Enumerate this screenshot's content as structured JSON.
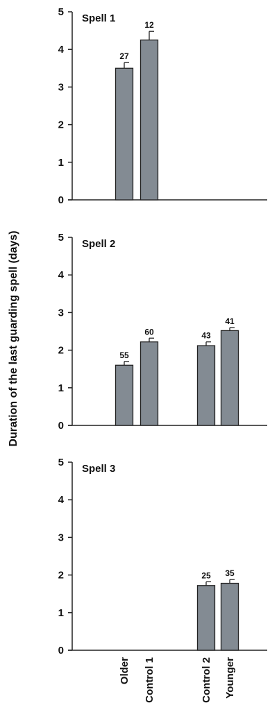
{
  "figure": {
    "ylabel": "Duration of the last guarding spell (days)",
    "categories": [
      "Older",
      "Control 1",
      "Control 2",
      "Younger"
    ]
  },
  "colors": {
    "bar_fill": "#838b93",
    "bar_stroke": "#222222",
    "axis": "#222222"
  },
  "chart_data": [
    {
      "type": "bar",
      "title": "Spell 1",
      "categories": [
        "Older",
        "Control 1",
        "Control 2",
        "Younger"
      ],
      "values": [
        3.5,
        4.25,
        null,
        null
      ],
      "errors": [
        0.15,
        0.23,
        null,
        null
      ],
      "n_labels": [
        "27",
        "12",
        "",
        ""
      ],
      "ylabel": "Duration of the last guarding spell (days)",
      "ylim": [
        0,
        5
      ],
      "yticks": [
        "0",
        "1",
        "2",
        "3",
        "4",
        "5"
      ]
    },
    {
      "type": "bar",
      "title": "Spell 2",
      "categories": [
        "Older",
        "Control 1",
        "Control 2",
        "Younger"
      ],
      "values": [
        1.6,
        2.22,
        2.12,
        2.52
      ],
      "errors": [
        0.1,
        0.1,
        0.1,
        0.08
      ],
      "n_labels": [
        "55",
        "60",
        "43",
        "41"
      ],
      "ylabel": "Duration of the last guarding spell (days)",
      "ylim": [
        0,
        5
      ],
      "yticks": [
        "0",
        "1",
        "2",
        "3",
        "4",
        "5"
      ]
    },
    {
      "type": "bar",
      "title": "Spell 3",
      "categories": [
        "Older",
        "Control 1",
        "Control 2",
        "Younger"
      ],
      "values": [
        null,
        null,
        1.72,
        1.78
      ],
      "errors": [
        null,
        null,
        0.1,
        0.1
      ],
      "n_labels": [
        "",
        "",
        "25",
        "35"
      ],
      "ylabel": "Duration of the last guarding spell (days)",
      "ylim": [
        0,
        5
      ],
      "yticks": [
        "0",
        "1",
        "2",
        "3",
        "4",
        "5"
      ]
    }
  ]
}
